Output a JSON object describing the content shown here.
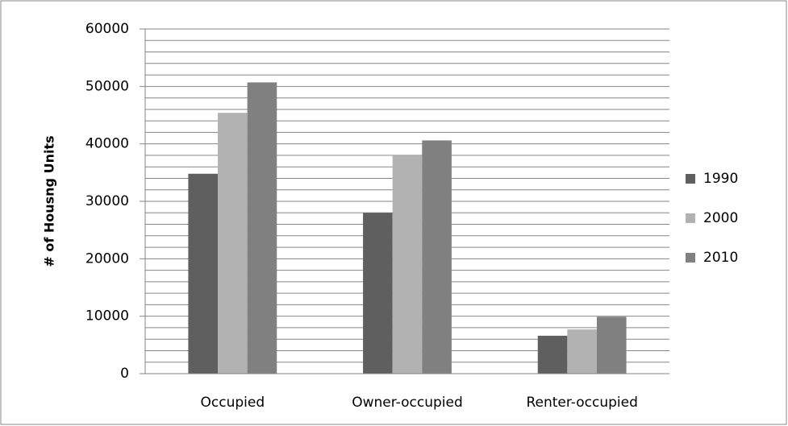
{
  "chart_data": {
    "type": "bar",
    "y_label": "# of Housng Units",
    "categories": [
      "Occupied",
      "Owner-occupied",
      "Renter-occupied"
    ],
    "series": [
      {
        "name": "1990",
        "color": "#5f5f5f",
        "values": [
          34800,
          28000,
          6600
        ]
      },
      {
        "name": "2000",
        "color": "#b2b2b2",
        "values": [
          45400,
          38000,
          7700
        ]
      },
      {
        "name": "2010",
        "color": "#808080",
        "values": [
          50700,
          40600,
          9900
        ]
      }
    ],
    "ylim": [
      0,
      60000
    ],
    "yticks": [
      0,
      10000,
      20000,
      30000,
      40000,
      50000,
      60000
    ],
    "yminorticks": [
      2000,
      4000,
      6000,
      8000,
      12000,
      14000,
      16000,
      18000,
      22000,
      24000,
      26000,
      28000,
      32000,
      34000,
      36000,
      38000,
      42000,
      44000,
      46000,
      48000,
      52000,
      54000,
      56000,
      58000
    ],
    "grid": true,
    "legend": "right"
  }
}
